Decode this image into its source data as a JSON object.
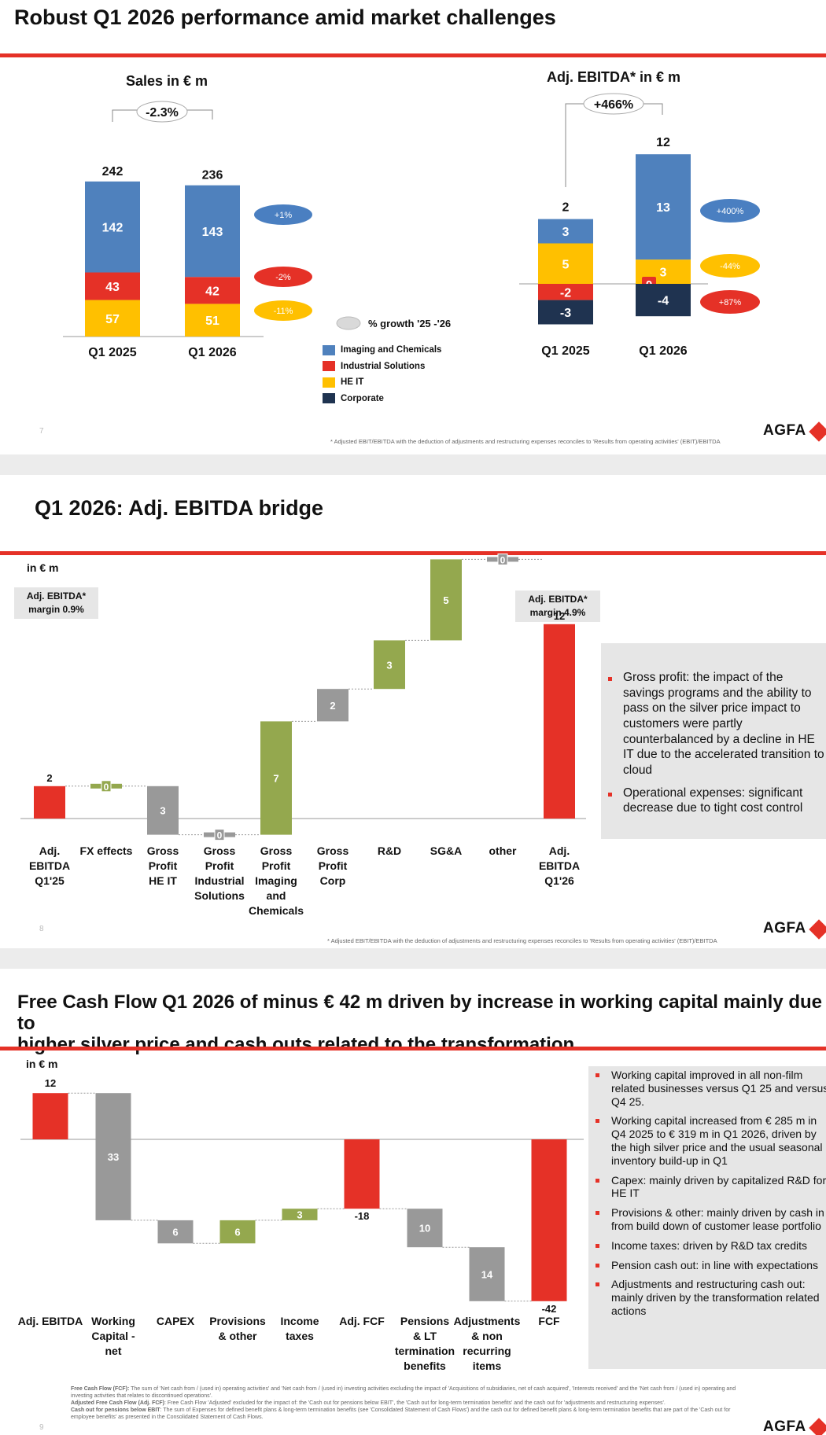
{
  "colors": {
    "blue": "#4f81bd",
    "red": "#e53127",
    "yellow": "#ffc000",
    "navy": "#1f3350",
    "gray": "#999999",
    "green": "#94a84e",
    "bubble_blue": "#4a7fc1"
  },
  "slide1": {
    "title": "Robust Q1 2026 performance amid market challenges",
    "page_number": "7",
    "footnote": "* Adjusted EBIT/EBITDA with the deduction of adjustments and restructuring expenses reconciles to 'Results from operating activities' (EBIT)/EBITDA",
    "logo": "AGFA",
    "growth_legend": "% growth '25 -'26",
    "legend": [
      {
        "label": "Imaging and Chemicals",
        "color": "#4f81bd"
      },
      {
        "label": "Industrial Solutions",
        "color": "#e53127"
      },
      {
        "label": "HE IT",
        "color": "#ffc000"
      },
      {
        "label": "Corporate",
        "color": "#1f3350"
      }
    ]
  },
  "slide2": {
    "title": "Q1 2026: Adj. EBITDA bridge",
    "page_number": "8",
    "unit": "in € m",
    "margin_start": "Adj. EBITDA*\nmargin 0.9%",
    "margin_end": "Adj. EBITDA*\nmargin 4.9%",
    "bullets": [
      "Gross profit: the impact of the savings programs and the ability to pass on the silver price impact to customers were partly counterbalanced by a decline in HE IT due to the accelerated transition to cloud",
      "Operational expenses: significant decrease due to tight cost control"
    ],
    "footnote": "* Adjusted EBIT/EBITDA with the deduction of adjustments and restructuring expenses reconciles to 'Results from operating activities' (EBIT)/EBITDA",
    "logo": "AGFA"
  },
  "slide3": {
    "title_line1": "Free Cash Flow Q1 2026 of minus € 42 m driven by increase in working capital mainly due to",
    "title_line2": "higher silver price and cash outs related to the transformation",
    "page_number": "9",
    "unit": "in € m",
    "bullets": [
      "Working capital improved in all non-film\nrelated businesses versus Q1 25 and versus\nQ4 25.",
      "Working capital increased from € 285 m in\nQ4 2025 to € 319 m in Q1 2026, driven by\nthe high silver price and the usual seasonal\ninventory build-up in Q1",
      "Capex: mainly driven by capitalized R&D for\nHE IT",
      "Provisions & other: mainly driven by cash in\nfrom build down of customer lease portfolio",
      "Income taxes: driven by R&D tax credits",
      "Pension cash out: in line with expectations",
      "Adjustments and restructuring cash out:\nmainly driven by the transformation related\nactions"
    ],
    "footnotes": [
      {
        "label": "Free Cash Flow (FCF):",
        "text": " The sum of 'Net cash from / (used in) operating activities' and 'Net cash from / (used in) investing activities excluding the impact of 'Acquisitions of subsidiaries, net of cash acquired', 'Interests received' and the 'Net cash from / (used in) operating and investing activities that relates to discontinued operations'."
      },
      {
        "label": "Adjusted Free Cash Flow (Adj. FCF)",
        "text": ": Free Cash Flow 'Adjusted' excluded for the impact of: the 'Cash out for pensions below EBIT', the 'Cash out for long-term termination benefits' and the cash out for 'adjustments and restructuring expenses'."
      },
      {
        "label": "Cash out for pensions below EBIT",
        "text": ": The sum of Expenses for defined benefit plans & long-term termination benefits (see 'Consolidated Statement of Cash Flows') and the cash out for defined benefit plans & long-term termination benefits that are part of the 'Cash out for employee benefits' as presented in the Consolidated Statement of Cash Flows."
      }
    ],
    "logo": "AGFA"
  },
  "chart_data": [
    {
      "type": "bar",
      "stacked": true,
      "title": "Sales in € m",
      "categories": [
        "Q1 2025",
        "Q1 2026"
      ],
      "totals": [
        242,
        236
      ],
      "series": [
        {
          "name": "Imaging and Chemicals",
          "values": [
            142,
            143
          ],
          "growth": "+1%"
        },
        {
          "name": "Industrial Solutions",
          "values": [
            43,
            42
          ],
          "growth": "-2%"
        },
        {
          "name": "HE IT",
          "values": [
            57,
            51
          ],
          "growth": "-11%"
        }
      ],
      "total_growth": "-2.3%"
    },
    {
      "type": "bar",
      "stacked": true,
      "title": "Adj. EBITDA* in € m",
      "categories": [
        "Q1 2025",
        "Q1 2026"
      ],
      "totals": [
        2,
        12
      ],
      "series": [
        {
          "name": "Imaging and Chemicals",
          "values": [
            3,
            13
          ],
          "growth": "+400%"
        },
        {
          "name": "HE IT",
          "values": [
            5,
            3
          ],
          "growth": "-44%"
        },
        {
          "name": "Industrial Solutions",
          "values": [
            -2,
            0
          ],
          "growth": ""
        },
        {
          "name": "Corporate",
          "values": [
            -3,
            -4
          ],
          "growth": "+87%"
        }
      ],
      "total_growth": "+466%"
    },
    {
      "type": "bar",
      "waterfall": true,
      "categories": [
        "Adj.\nEBITDA\nQ1'25",
        "FX effects",
        "Gross\nProfit\nHE IT",
        "Gross\nProfit\nIndustrial\nSolutions",
        "Gross\nProfit\nImaging\nand\nChemicals",
        "Gross\nProfit\nCorp",
        "R&D",
        "SG&A",
        "other",
        "Adj.\nEBITDA\nQ1'26"
      ],
      "values": [
        2,
        0,
        -3,
        0,
        7,
        2,
        3,
        5,
        0,
        12
      ],
      "labels": [
        "2",
        "0",
        "3",
        "0",
        "7",
        "2",
        "3",
        "5",
        "0",
        "12"
      ]
    },
    {
      "type": "bar",
      "waterfall": true,
      "categories": [
        "Adj. EBITDA",
        "Working\nCapital -\nnet",
        "CAPEX",
        "Provisions\n& other",
        "Income\ntaxes",
        "Adj. FCF",
        "Pensions\n& LT\ntermination\nbenefits",
        "Adjustments\n& non\nrecurring\nitems",
        "FCF"
      ],
      "values": [
        12,
        -33,
        -6,
        6,
        3,
        -18,
        -10,
        -14,
        -42
      ],
      "labels": [
        "12",
        "33",
        "6",
        "6",
        "3",
        "-18",
        "10",
        "14",
        "-42"
      ]
    }
  ]
}
